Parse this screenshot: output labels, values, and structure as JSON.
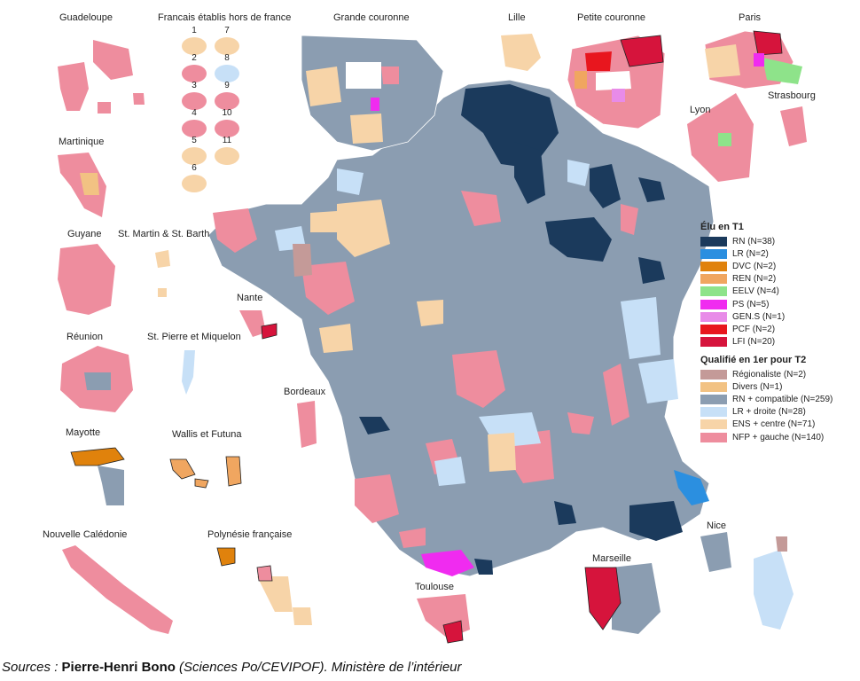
{
  "colors": {
    "RN": "#1b3a5c",
    "LR": "#2b8fe0",
    "DVC": "#e0820c",
    "REN": "#f0a660",
    "EELV": "#8ee38a",
    "PS": "#f02bf0",
    "GENS": "#e88be8",
    "PCF": "#e8161e",
    "LFI": "#d6143c",
    "Regionaliste": "#c49a98",
    "Divers": "#f2c283",
    "RN_compat": "#8b9db1",
    "LR_droite": "#c7e0f7",
    "ENS_centre": "#f7d4a8",
    "NFP_gauche": "#ee8d9e"
  },
  "legend": {
    "elu_title": "Élu en T1",
    "elu_items": [
      {
        "key": "RN",
        "label": "RN (N=38)"
      },
      {
        "key": "LR",
        "label": "LR (N=2)"
      },
      {
        "key": "DVC",
        "label": "DVC (N=2)"
      },
      {
        "key": "REN",
        "label": "REN (N=2)"
      },
      {
        "key": "EELV",
        "label": "EELV (N=4)"
      },
      {
        "key": "PS",
        "label": "PS (N=5)"
      },
      {
        "key": "GENS",
        "label": "GEN.S (N=1)"
      },
      {
        "key": "PCF",
        "label": "PCF (N=2)"
      },
      {
        "key": "LFI",
        "label": "LFI (N=20)"
      }
    ],
    "qual_title": "Qualifié en 1er pour T2",
    "qual_items": [
      {
        "key": "Regionaliste",
        "label": "Régionaliste (N=2)"
      },
      {
        "key": "Divers",
        "label": "Divers (N=1)"
      },
      {
        "key": "RN_compat",
        "label": "RN + compatible (N=259)"
      },
      {
        "key": "LR_droite",
        "label": "LR + droite (N=28)"
      },
      {
        "key": "ENS_centre",
        "label": "ENS + centre (N=71)"
      },
      {
        "key": "NFP_gauche",
        "label": "NFP + gauche (N=140)"
      }
    ]
  },
  "labels": {
    "guadeloupe": "Guadeloupe",
    "fhf": "Francais établis hors de france",
    "grande_couronne": "Grande couronne",
    "lille": "Lille",
    "petite_couronne": "Petite couronne",
    "paris": "Paris",
    "strasbourg": "Strasbourg",
    "lyon": "Lyon",
    "martinique": "Martinique",
    "guyane": "Guyane",
    "st_martin": "St. Martin & St. Barth",
    "nante": "Nante",
    "reunion": "Réunion",
    "st_pierre": "St. Pierre et Miquelon",
    "bordeaux": "Bordeaux",
    "mayotte": "Mayotte",
    "wallis": "Wallis et Futuna",
    "nouvelle_caledonie": "Nouvelle Calédonie",
    "polynesie": "Polynésie française",
    "toulouse": "Toulouse",
    "marseille": "Marseille",
    "nice": "Nice"
  },
  "fhf_circles": [
    {
      "num": "1",
      "key": "ENS_centre"
    },
    {
      "num": "7",
      "key": "ENS_centre"
    },
    {
      "num": "2",
      "key": "NFP_gauche"
    },
    {
      "num": "8",
      "key": "LR_droite"
    },
    {
      "num": "3",
      "key": "NFP_gauche"
    },
    {
      "num": "9",
      "key": "NFP_gauche"
    },
    {
      "num": "4",
      "key": "NFP_gauche"
    },
    {
      "num": "10",
      "key": "NFP_gauche"
    },
    {
      "num": "5",
      "key": "ENS_centre"
    },
    {
      "num": "11",
      "key": "ENS_centre"
    },
    {
      "num": "6",
      "key": "ENS_centre"
    }
  ],
  "sources": {
    "prefix": "Sources : ",
    "author": "Pierre-Henri Bono",
    "rest": " (Sciences Po/CEVIPOF). Ministère de l’intérieur"
  }
}
